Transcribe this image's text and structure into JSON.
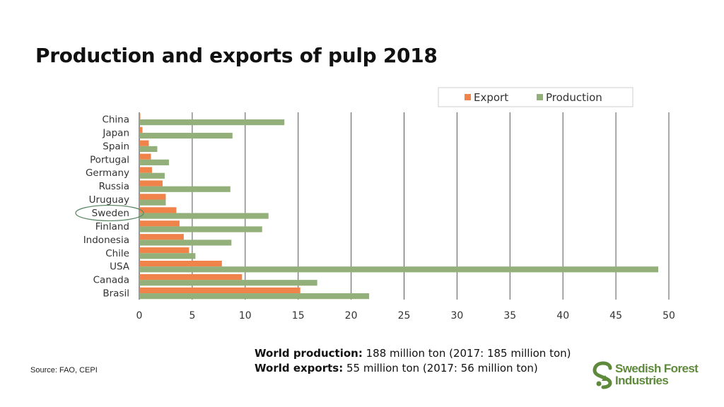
{
  "title": "Production and exports of pulp 2018",
  "chart_data": {
    "type": "bar",
    "orientation": "horizontal",
    "categories": [
      "China",
      "Japan",
      "Spain",
      "Portugal",
      "Germany",
      "Russia",
      "Uruguay",
      "Sweden",
      "Finland",
      "Indonesia",
      "Chile",
      "USA",
      "Canada",
      "Brasil"
    ],
    "series": [
      {
        "name": "Export",
        "color": "#f0834a",
        "values": [
          0.1,
          0.3,
          0.9,
          1.1,
          1.2,
          2.2,
          2.5,
          3.5,
          3.8,
          4.2,
          4.7,
          7.8,
          9.7,
          15.2
        ]
      },
      {
        "name": "Production",
        "color": "#93b07a",
        "values": [
          13.7,
          8.8,
          1.7,
          2.8,
          2.4,
          8.6,
          2.5,
          12.2,
          11.6,
          8.7,
          5.3,
          49.0,
          16.8,
          21.7
        ]
      }
    ],
    "xlim": [
      0,
      50
    ],
    "xticks": [
      0,
      5,
      10,
      15,
      20,
      25,
      30,
      35,
      40,
      45,
      50
    ],
    "grid": true,
    "legend_position": "top-right",
    "highlighted_category": "Sweden",
    "highlight_color": "#5e8a66"
  },
  "stats": {
    "production_label": "World production:",
    "production_value": " 188 million ton (2017: 185 million ton)",
    "exports_label": "World exports:",
    "exports_value": " 55 million ton (2017: 56 million ton)"
  },
  "source": "Source: FAO, CEPI",
  "logo": {
    "name": "logo-mark-icon",
    "line1": "Swedish Forest",
    "line2": "Industries",
    "color": "#5f8a3c"
  }
}
